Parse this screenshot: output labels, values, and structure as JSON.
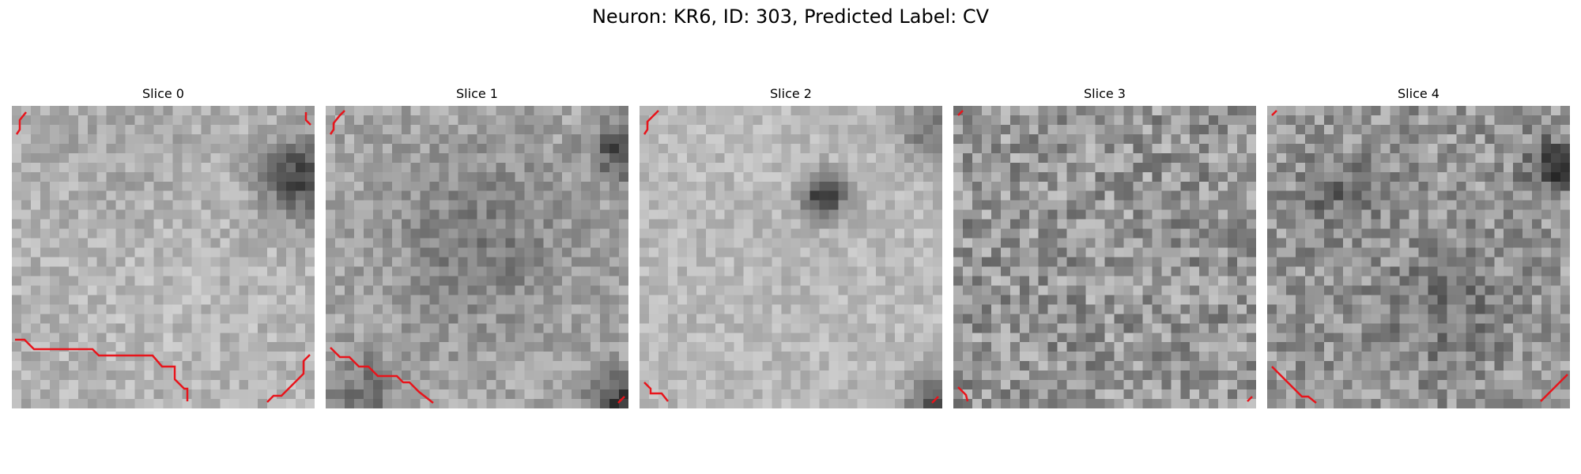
{
  "figure": {
    "title": "Neuron: KR6, ID: 303, Predicted Label: CV"
  },
  "panels": [
    {
      "title": "Slice 0",
      "image": "grayscale-microscopy-patch",
      "contour_color": "#e8141b"
    },
    {
      "title": "Slice 1",
      "image": "grayscale-microscopy-patch",
      "contour_color": "#e8141b"
    },
    {
      "title": "Slice 2",
      "image": "grayscale-microscopy-patch",
      "contour_color": "#e8141b"
    },
    {
      "title": "Slice 3",
      "image": "grayscale-microscopy-patch",
      "contour_color": "#e8141b"
    },
    {
      "title": "Slice 4",
      "image": "grayscale-microscopy-patch",
      "contour_color": "#e8141b"
    }
  ]
}
